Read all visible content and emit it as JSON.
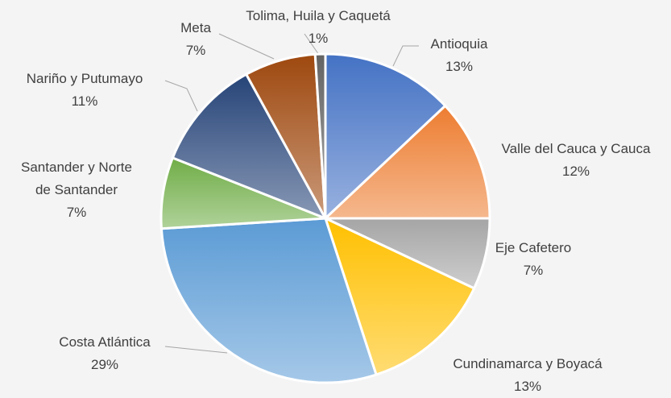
{
  "chart_data": {
    "type": "pie",
    "categories": [
      "Antioquia",
      "Valle del Cauca y Cauca",
      "Eje Cafetero",
      "Cundinamarca y Boyacá",
      "Costa Atlántica",
      "Santander y Norte de Santander",
      "Nariño y Putumayo",
      "Meta",
      "Tolima, Huila y Caquetá"
    ],
    "values": [
      13,
      12,
      7,
      13,
      29,
      7,
      11,
      7,
      1
    ],
    "value_labels": [
      "13%",
      "12%",
      "7%",
      "13%",
      "29%",
      "7%",
      "11%",
      "7%",
      "1%"
    ],
    "colors": [
      "#4472c4",
      "#ed7d31",
      "#a5a5a5",
      "#ffc000",
      "#5b9bd5",
      "#70ad47",
      "#264478",
      "#9e480e",
      "#636363"
    ]
  }
}
